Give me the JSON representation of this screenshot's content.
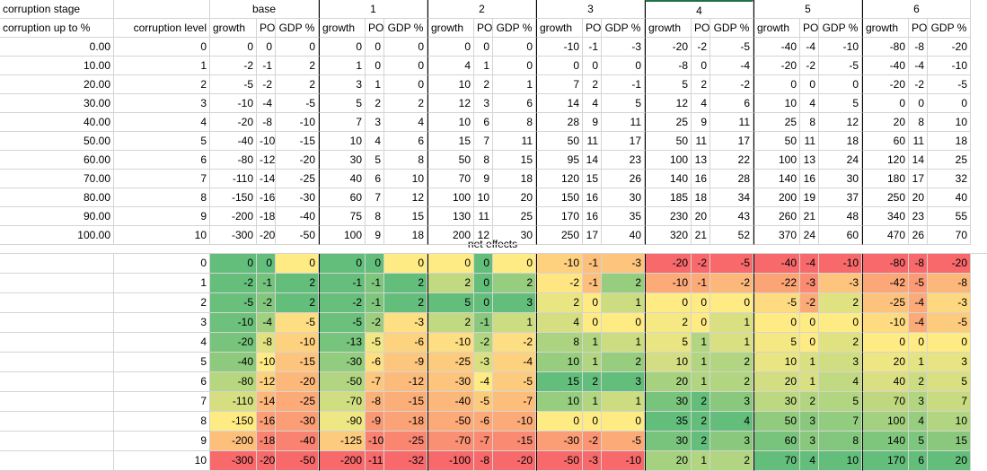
{
  "labels": {
    "corruption_stage": "corruption stage",
    "corruption_up_to": "corruption up to %",
    "corruption_level": "corruption level",
    "net_effects": "net effects"
  },
  "stages": [
    "base",
    "1",
    "2",
    "3",
    "4",
    "5",
    "6"
  ],
  "subheaders": [
    "growth",
    "PO",
    "GDP %"
  ],
  "percents": [
    "0.00",
    "10.00",
    "20.00",
    "30.00",
    "40.00",
    "50.00",
    "60.00",
    "70.00",
    "80.00",
    "90.00",
    "100.00"
  ],
  "levels": [
    0,
    1,
    2,
    3,
    4,
    5,
    6,
    7,
    8,
    9,
    10
  ],
  "top_table": [
    [
      0,
      0,
      0,
      0,
      0,
      0,
      0,
      0,
      0,
      -10,
      -1,
      -3,
      -20,
      -2,
      -5,
      -40,
      -4,
      -10,
      -80,
      -8,
      -20
    ],
    [
      -2,
      -1,
      2,
      1,
      0,
      0,
      4,
      1,
      0,
      0,
      0,
      0,
      -8,
      0,
      -4,
      -20,
      -2,
      -5,
      -40,
      -4,
      -10
    ],
    [
      -5,
      -2,
      2,
      3,
      1,
      0,
      10,
      2,
      1,
      7,
      2,
      -1,
      5,
      2,
      -2,
      0,
      0,
      0,
      -20,
      -2,
      -5
    ],
    [
      -10,
      -4,
      -5,
      5,
      2,
      2,
      12,
      3,
      6,
      14,
      4,
      5,
      12,
      4,
      6,
      10,
      4,
      5,
      0,
      0,
      0
    ],
    [
      -20,
      -8,
      -10,
      7,
      3,
      4,
      10,
      6,
      8,
      28,
      9,
      11,
      25,
      9,
      11,
      25,
      8,
      12,
      20,
      8,
      10
    ],
    [
      -40,
      -10,
      -15,
      10,
      4,
      6,
      15,
      7,
      11,
      50,
      11,
      17,
      50,
      11,
      17,
      50,
      11,
      18,
      60,
      11,
      18
    ],
    [
      -80,
      -12,
      -20,
      30,
      5,
      8,
      50,
      8,
      15,
      95,
      14,
      23,
      100,
      13,
      22,
      100,
      13,
      24,
      120,
      14,
      25
    ],
    [
      -110,
      -14,
      -25,
      40,
      6,
      10,
      70,
      9,
      18,
      120,
      15,
      26,
      140,
      16,
      28,
      140,
      16,
      30,
      180,
      17,
      32
    ],
    [
      -150,
      -16,
      -30,
      60,
      7,
      12,
      100,
      10,
      20,
      150,
      16,
      30,
      185,
      18,
      34,
      200,
      19,
      37,
      250,
      20,
      40
    ],
    [
      -200,
      -18,
      -40,
      75,
      8,
      15,
      130,
      11,
      25,
      170,
      16,
      35,
      230,
      20,
      43,
      260,
      21,
      48,
      340,
      23,
      55
    ],
    [
      -300,
      -20,
      -50,
      100,
      9,
      18,
      200,
      12,
      30,
      250,
      17,
      40,
      320,
      21,
      52,
      370,
      24,
      60,
      470,
      26,
      70
    ]
  ],
  "net_table": [
    [
      0,
      0,
      0,
      0,
      0,
      0,
      0,
      0,
      0,
      -10,
      -1,
      -3,
      -20,
      -2,
      -5,
      -40,
      -4,
      -10,
      -80,
      -8,
      -20
    ],
    [
      -2,
      -1,
      2,
      -1,
      -1,
      2,
      2,
      0,
      2,
      -2,
      -1,
      2,
      -10,
      -1,
      -2,
      -22,
      -3,
      -3,
      -42,
      -5,
      -8
    ],
    [
      -5,
      -2,
      2,
      -2,
      -1,
      2,
      5,
      0,
      3,
      2,
      0,
      1,
      0,
      0,
      0,
      -5,
      -2,
      2,
      -25,
      -4,
      -3
    ],
    [
      -10,
      -4,
      -5,
      -5,
      -2,
      -3,
      2,
      -1,
      1,
      4,
      0,
      0,
      2,
      0,
      1,
      0,
      0,
      0,
      -10,
      -4,
      -5
    ],
    [
      -20,
      -8,
      -10,
      -13,
      -5,
      -6,
      -10,
      -2,
      -2,
      8,
      1,
      1,
      5,
      1,
      1,
      5,
      0,
      2,
      0,
      0,
      0
    ],
    [
      -40,
      -10,
      -15,
      -30,
      -6,
      -9,
      -25,
      -3,
      -4,
      10,
      1,
      2,
      10,
      1,
      2,
      10,
      1,
      3,
      20,
      1,
      3
    ],
    [
      -80,
      -12,
      -20,
      -50,
      -7,
      -12,
      -30,
      -4,
      -5,
      15,
      2,
      3,
      20,
      1,
      2,
      20,
      1,
      4,
      40,
      2,
      5
    ],
    [
      -110,
      -14,
      -25,
      -70,
      -8,
      -15,
      -40,
      -5,
      -7,
      10,
      1,
      1,
      30,
      2,
      3,
      30,
      2,
      5,
      70,
      3,
      7
    ],
    [
      -150,
      -16,
      -30,
      -90,
      -9,
      -18,
      -50,
      -6,
      -10,
      0,
      0,
      0,
      35,
      2,
      4,
      50,
      3,
      7,
      100,
      4,
      10
    ],
    [
      -200,
      -18,
      -40,
      -125,
      -10,
      -25,
      -70,
      -7,
      -15,
      -30,
      -2,
      -5,
      30,
      2,
      3,
      60,
      3,
      8,
      140,
      5,
      15
    ],
    [
      -300,
      -20,
      -50,
      -200,
      -11,
      -32,
      -100,
      -8,
      -20,
      -50,
      -3,
      -10,
      20,
      1,
      2,
      70,
      4,
      10,
      170,
      6,
      20
    ]
  ],
  "colors": {
    "gridline": "#d4d4d4",
    "selection": "#217346",
    "scale_low": "#f8696b",
    "scale_mid": "#ffeb84",
    "scale_high": "#63be7b"
  }
}
